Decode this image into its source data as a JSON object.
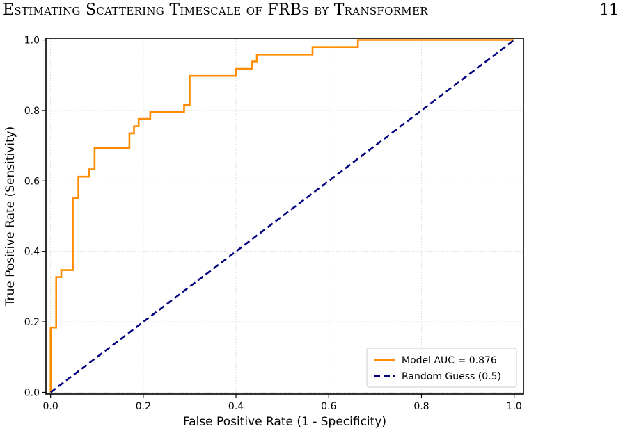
{
  "header": {
    "running_title": "Estimating Scattering Timescale of FRBs by Transformer",
    "page_number": "11"
  },
  "chart_data": {
    "type": "line",
    "title": "",
    "xlabel": "False Positive Rate (1 - Specificity)",
    "ylabel": "True Positive Rate (Sensitivity)",
    "xlim": [
      -0.01,
      1.02
    ],
    "ylim": [
      -0.005,
      1.005
    ],
    "xticks": [
      0.0,
      0.2,
      0.4,
      0.6,
      0.8,
      1.0
    ],
    "yticks": [
      0.0,
      0.2,
      0.4,
      0.6,
      0.8,
      1.0
    ],
    "xtick_labels": [
      "0.0",
      "0.2",
      "0.4",
      "0.6",
      "0.8",
      "1.0"
    ],
    "ytick_labels": [
      "0.0",
      "0.2",
      "0.4",
      "0.6",
      "0.8",
      "1.0"
    ],
    "grid": true,
    "legend_position": "lower-right",
    "series": [
      {
        "name": "Model AUC = 0.876",
        "color": "#ff8c00",
        "style": "solid",
        "x": [
          0.0,
          0.0,
          0.012,
          0.012,
          0.023,
          0.023,
          0.035,
          0.035,
          0.048,
          0.048,
          0.048,
          0.06,
          0.06,
          0.083,
          0.083,
          0.095,
          0.095,
          0.13,
          0.17,
          0.17,
          0.18,
          0.18,
          0.19,
          0.19,
          0.215,
          0.215,
          0.24,
          0.288,
          0.288,
          0.3,
          0.3,
          0.4,
          0.4,
          0.43,
          0.435,
          0.435,
          0.445,
          0.445,
          0.565,
          0.565,
          0.663,
          0.663,
          1.0
        ],
        "y": [
          0.0,
          0.184,
          0.184,
          0.327,
          0.327,
          0.347,
          0.347,
          0.347,
          0.347,
          0.469,
          0.551,
          0.551,
          0.612,
          0.612,
          0.633,
          0.633,
          0.694,
          0.694,
          0.694,
          0.735,
          0.735,
          0.755,
          0.755,
          0.776,
          0.776,
          0.796,
          0.796,
          0.796,
          0.816,
          0.816,
          0.898,
          0.898,
          0.918,
          0.918,
          0.918,
          0.939,
          0.939,
          0.959,
          0.959,
          0.98,
          0.98,
          1.0,
          1.0
        ]
      },
      {
        "name": "Random Guess (0.5)",
        "color": "#000080",
        "style": "dashed",
        "x": [
          0.0,
          1.0
        ],
        "y": [
          0.0,
          1.0
        ]
      }
    ]
  }
}
